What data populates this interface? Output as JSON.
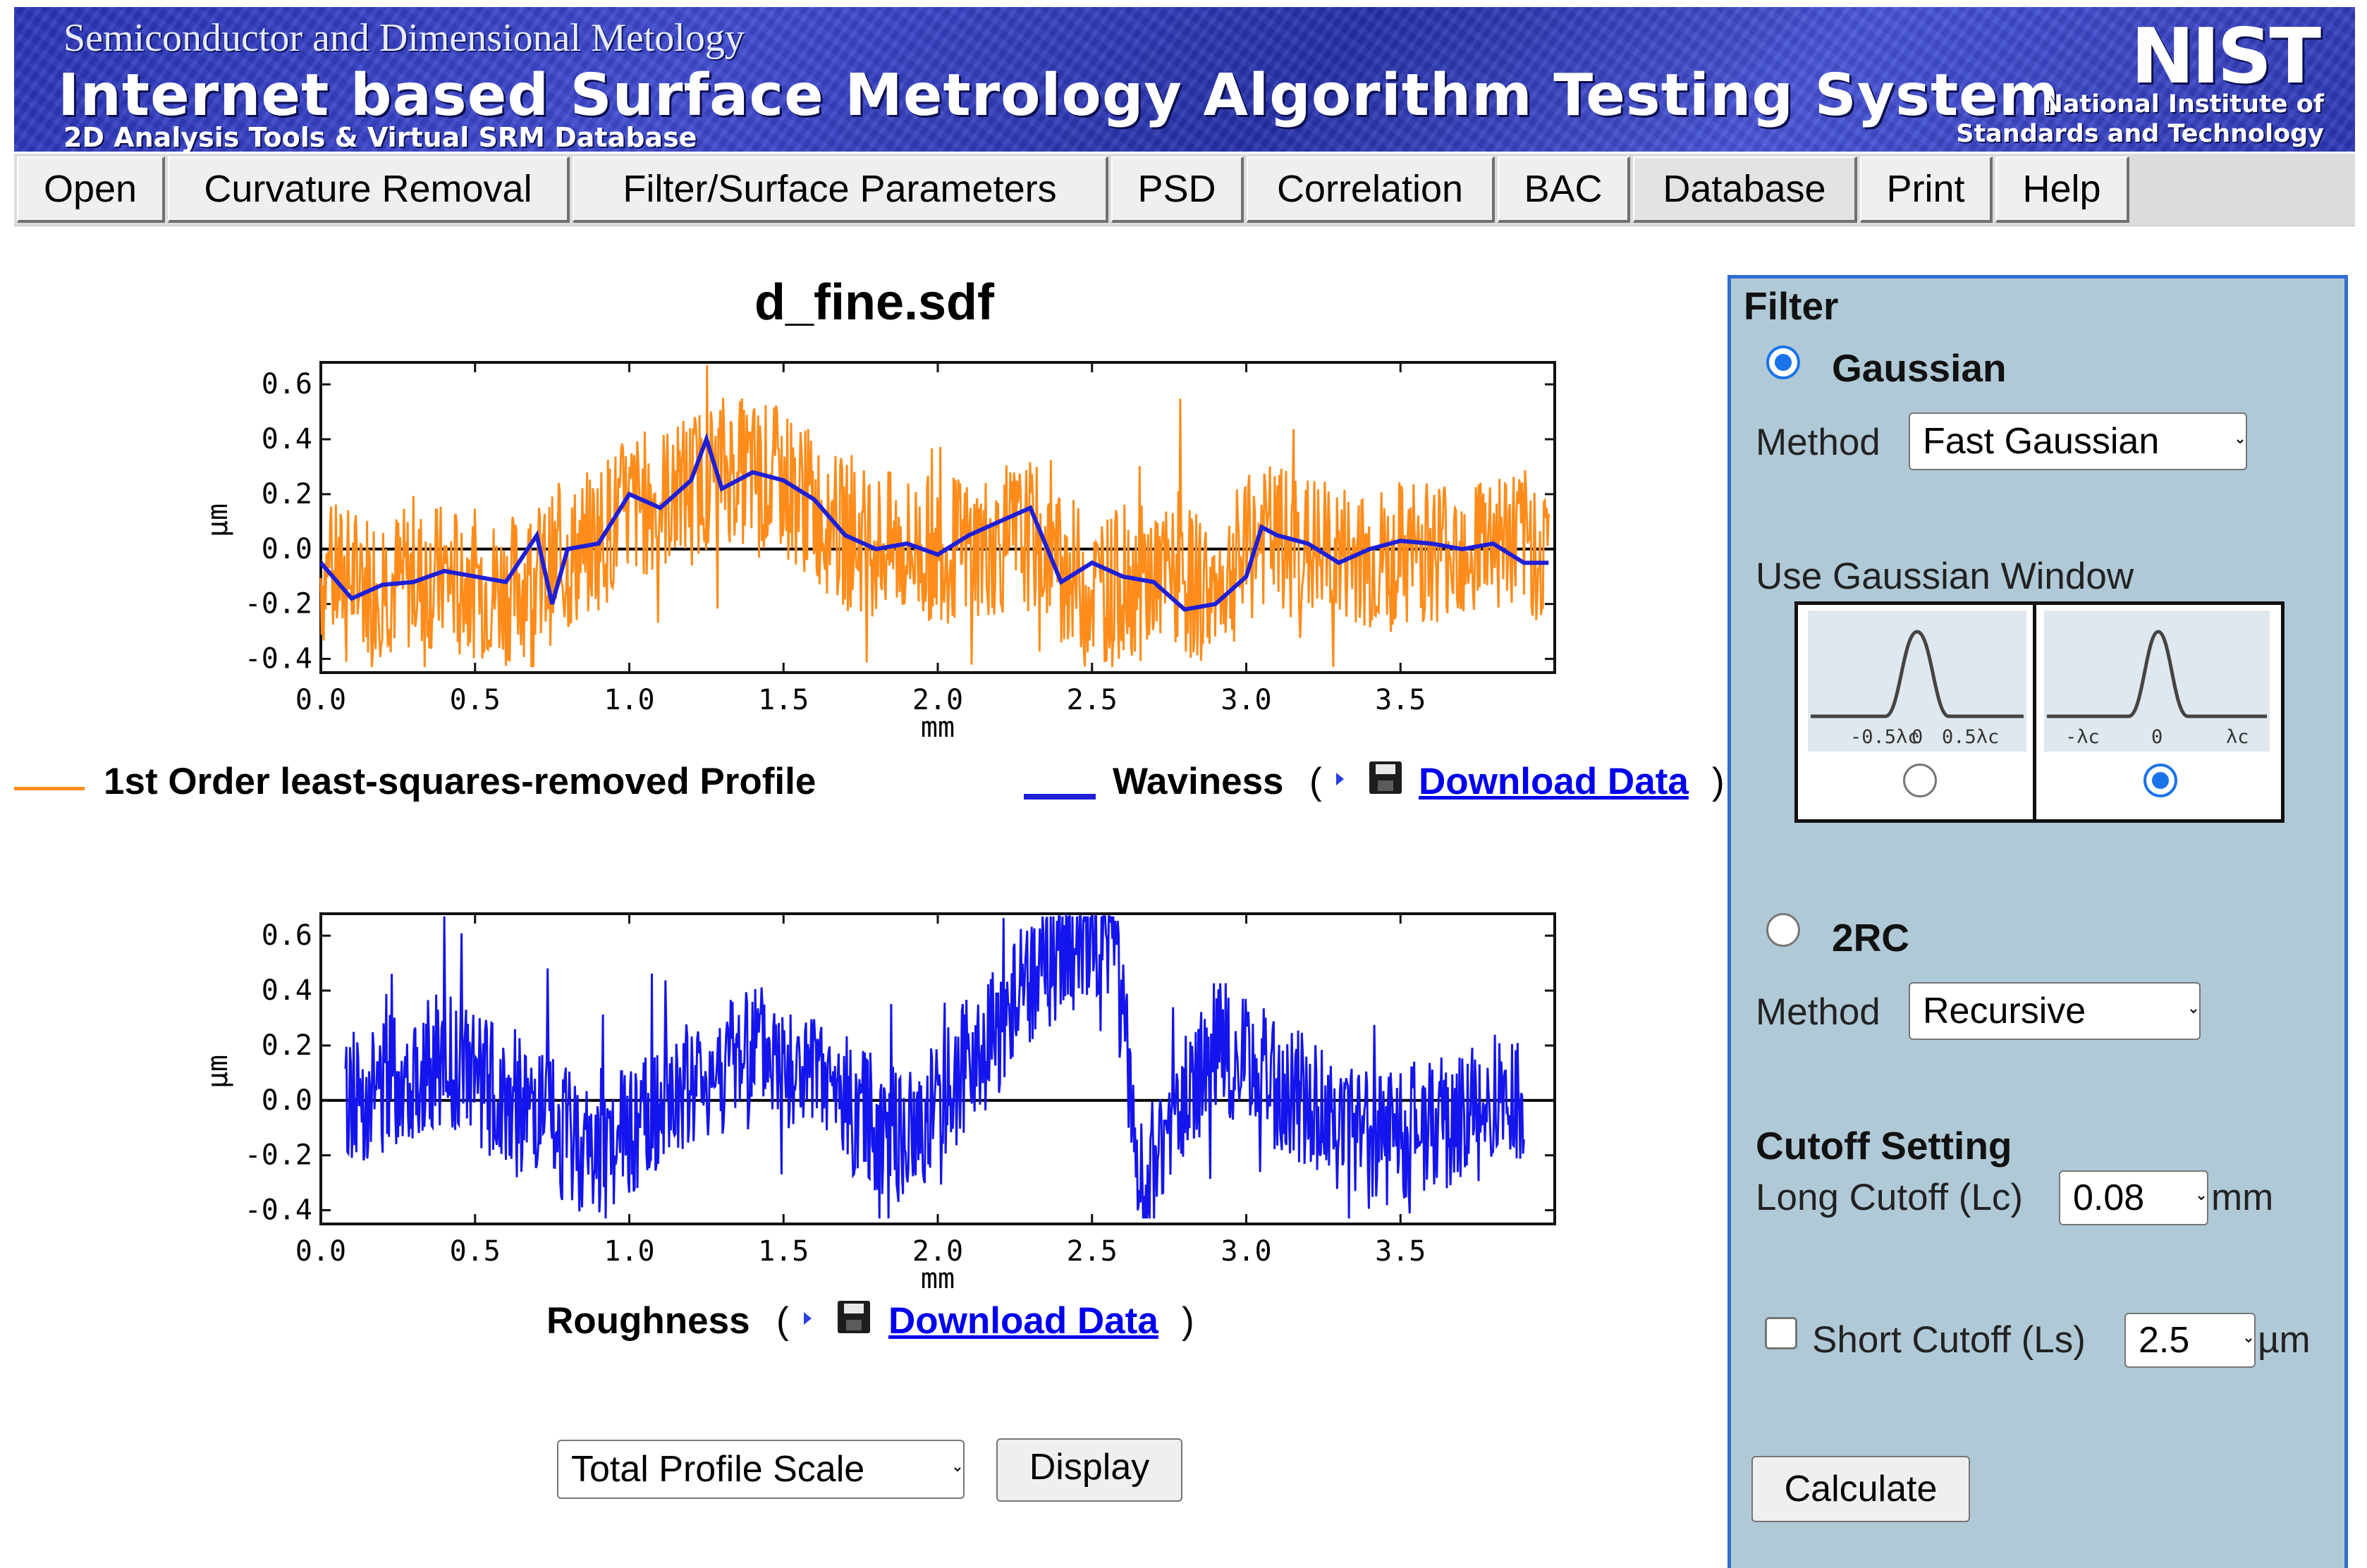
{
  "banner": {
    "subtitle_top": "Semiconductor and Dimensional Metology",
    "title": "Internet based Surface Metrology Algorithm Testing System",
    "subtitle_bottom": "2D Analysis Tools & Virtual SRM Database",
    "logo": "NIST",
    "org_line1": "National Institute of",
    "org_line2": "Standards and Technology"
  },
  "menu": {
    "open": "Open",
    "curvature": "Curvature Removal",
    "filter": "Filter/Surface Parameters",
    "psd": "PSD",
    "correlation": "Correlation",
    "bac": "BAC",
    "database": "Database",
    "print": "Print",
    "help": "Help"
  },
  "file_title": "d_fine.sdf",
  "legend": {
    "profile": "1st Order least-squares-removed Profile",
    "waviness": "Waviness",
    "download": "Download Data",
    "roughness": "Roughness",
    "paren_open": "(",
    "paren_close": ")"
  },
  "bottom": {
    "scale_select": "Total Profile Scale",
    "display_button": "Display"
  },
  "panel": {
    "header": "Filter",
    "gaussian_label": "Gaussian",
    "method_label": "Method",
    "gaussian_method": "Fast Gaussian",
    "window_label": "Use Gaussian Window",
    "window_left_ticks": [
      "-0.5λc",
      "0",
      "0.5λc"
    ],
    "window_right_ticks": [
      "-λc",
      "0",
      "λc"
    ],
    "rc_label": "2RC",
    "rc_method": "Recursive",
    "cutoff_header": "Cutoff Setting",
    "long_cutoff_label": "Long Cutoff (Lc)",
    "long_cutoff_value": "0.08",
    "long_cutoff_unit": "mm",
    "short_cutoff_label": "Short Cutoff (Ls)",
    "short_cutoff_value": "2.5",
    "short_cutoff_unit": "µm",
    "calculate": "Calculate"
  },
  "colors": {
    "profile": "#ff8c1a",
    "waviness": "#1f1fd6",
    "roughness": "#1414ee",
    "link": "#0000ee",
    "panel_bg": "#b0c9d7",
    "panel_border": "#2f6fd0"
  },
  "chart_data": [
    {
      "type": "line",
      "title": "",
      "xlabel": "mm",
      "ylabel": "µm",
      "xlim": [
        0.0,
        4.0
      ],
      "ylim": [
        -0.45,
        0.68
      ],
      "xticks": [
        "0.0",
        "0.5",
        "1.0",
        "1.5",
        "2.0",
        "2.5",
        "3.0",
        "3.5"
      ],
      "yticks": [
        "0.6",
        "0.4",
        "0.2",
        "0.0",
        "-0.2",
        "-0.4"
      ],
      "series": [
        {
          "name": "1st Order least-squares-removed Profile",
          "x": [
            0.0,
            0.2,
            0.4,
            0.6,
            0.8,
            1.0,
            1.15,
            1.3,
            1.5,
            1.7,
            1.9,
            2.1,
            2.3,
            2.5,
            2.7,
            2.9,
            3.05,
            3.2,
            3.4,
            3.6,
            3.8,
            3.98
          ],
          "values": [
            -0.1,
            -0.12,
            -0.1,
            -0.15,
            -0.05,
            0.15,
            0.2,
            0.3,
            0.25,
            0.05,
            0.0,
            0.0,
            0.05,
            -0.15,
            -0.1,
            -0.15,
            0.05,
            0.0,
            -0.05,
            0.0,
            0.05,
            0.0
          ]
        },
        {
          "name": "Waviness",
          "x": [
            0.0,
            0.1,
            0.2,
            0.3,
            0.4,
            0.5,
            0.6,
            0.7,
            0.75,
            0.8,
            0.9,
            1.0,
            1.1,
            1.2,
            1.25,
            1.3,
            1.4,
            1.5,
            1.6,
            1.7,
            1.8,
            1.9,
            2.0,
            2.1,
            2.2,
            2.3,
            2.4,
            2.5,
            2.6,
            2.7,
            2.8,
            2.9,
            3.0,
            3.05,
            3.1,
            3.2,
            3.3,
            3.4,
            3.5,
            3.6,
            3.7,
            3.8,
            3.9,
            3.98
          ],
          "values": [
            -0.05,
            -0.18,
            -0.13,
            -0.12,
            -0.08,
            -0.1,
            -0.12,
            0.05,
            -0.2,
            0.0,
            0.02,
            0.2,
            0.15,
            0.25,
            0.4,
            0.22,
            0.28,
            0.25,
            0.18,
            0.05,
            0.0,
            0.02,
            -0.02,
            0.05,
            0.1,
            0.15,
            -0.12,
            -0.05,
            -0.1,
            -0.12,
            -0.22,
            -0.2,
            -0.1,
            0.08,
            0.05,
            0.02,
            -0.05,
            0.0,
            0.03,
            0.02,
            0.0,
            0.02,
            -0.05,
            -0.05
          ]
        }
      ]
    },
    {
      "type": "line",
      "title": "",
      "xlabel": "mm",
      "ylabel": "µm",
      "xlim": [
        0.0,
        4.0
      ],
      "ylim": [
        -0.45,
        0.68
      ],
      "xticks": [
        "0.0",
        "0.5",
        "1.0",
        "1.5",
        "2.0",
        "2.5",
        "3.0",
        "3.5"
      ],
      "yticks": [
        "0.6",
        "0.4",
        "0.2",
        "0.0",
        "-0.2",
        "-0.4"
      ],
      "series": [
        {
          "name": "Roughness",
          "x": [
            0.08,
            0.4,
            0.9,
            1.4,
            1.9,
            2.4,
            2.58,
            2.65,
            2.9,
            3.4,
            3.9
          ],
          "values": [
            0.0,
            0.15,
            -0.2,
            0.2,
            -0.15,
            0.55,
            0.62,
            -0.35,
            0.2,
            -0.15,
            0.0
          ]
        }
      ]
    }
  ]
}
